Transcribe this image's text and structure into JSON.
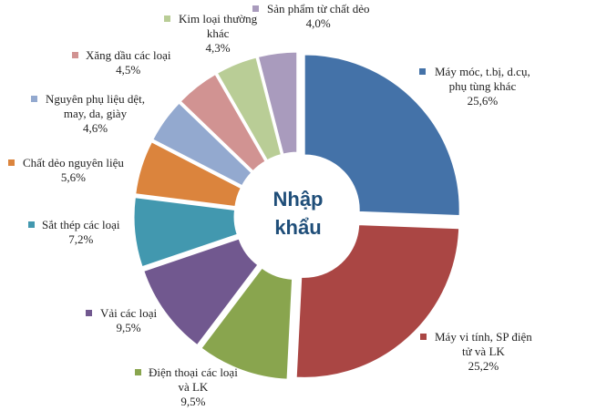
{
  "chart_data": {
    "type": "pie",
    "variant": "exploded-donut",
    "title": "Nhập khẩu",
    "colors": [
      "#4472A8",
      "#AA4644",
      "#89A54E",
      "#71588F",
      "#4298AF",
      "#DB843D",
      "#93A9CF",
      "#D19392",
      "#B9CD96",
      "#A99BBD"
    ],
    "slices": [
      {
        "label": [
          "Máy móc, t.bị, d.cụ,",
          "phụ tùng khác"
        ],
        "pct_text": "25,6%",
        "value": 25.6
      },
      {
        "label": [
          "Máy vi tính, SP điện",
          "tử và LK"
        ],
        "pct_text": "25,2%",
        "value": 25.2
      },
      {
        "label": [
          "Điện thoại các loại",
          "và LK"
        ],
        "pct_text": "9,5%",
        "value": 9.5
      },
      {
        "label": [
          "Vải các loại"
        ],
        "pct_text": "9,5%",
        "value": 9.5
      },
      {
        "label": [
          "Sắt thép các loại"
        ],
        "pct_text": "7,2%",
        "value": 7.2
      },
      {
        "label": [
          "Chất dẻo nguyên liệu"
        ],
        "pct_text": "5,6%",
        "value": 5.6
      },
      {
        "label": [
          "Nguyên phụ liệu dệt,",
          "may, da, giày"
        ],
        "pct_text": "4,6%",
        "value": 4.6
      },
      {
        "label": [
          "Xăng dầu các loại"
        ],
        "pct_text": "4,5%",
        "value": 4.5
      },
      {
        "label": [
          "Kim loại thường",
          "khác"
        ],
        "pct_text": "4,3%",
        "value": 4.3
      },
      {
        "label": [
          "Sản phẩm từ chất dẻo"
        ],
        "pct_text": "4,0%",
        "value": 4.0
      }
    ]
  }
}
